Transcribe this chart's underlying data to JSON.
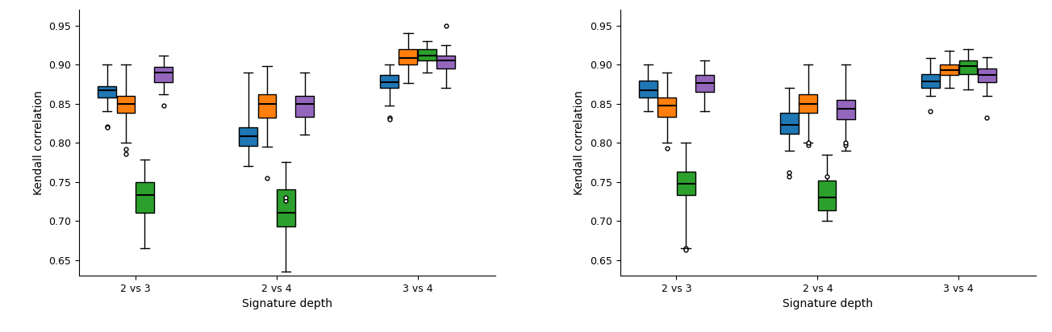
{
  "left": {
    "groups": [
      "2 vs 3",
      "2 vs 4",
      "3 vs 4"
    ],
    "series": {
      "blue": {
        "color": "#1f77b4",
        "boxes": [
          {
            "med": 0.867,
            "q1": 0.858,
            "q3": 0.872,
            "whislo": 0.84,
            "whishi": 0.9,
            "fliers": [
              0.821,
              0.82
            ]
          },
          {
            "med": 0.808,
            "q1": 0.796,
            "q3": 0.82,
            "whislo": 0.77,
            "whishi": 0.89,
            "fliers": []
          },
          {
            "med": 0.878,
            "q1": 0.87,
            "q3": 0.887,
            "whislo": 0.848,
            "whishi": 0.9,
            "fliers": [
              0.832,
              0.83
            ]
          }
        ]
      },
      "orange": {
        "color": "#ff7f0e",
        "boxes": [
          {
            "med": 0.85,
            "q1": 0.838,
            "q3": 0.86,
            "whislo": 0.8,
            "whishi": 0.9,
            "fliers": [
              0.792,
              0.786
            ]
          },
          {
            "med": 0.85,
            "q1": 0.832,
            "q3": 0.862,
            "whislo": 0.795,
            "whishi": 0.898,
            "fliers": [
              0.755
            ]
          },
          {
            "med": 0.908,
            "q1": 0.9,
            "q3": 0.92,
            "whislo": 0.876,
            "whishi": 0.94,
            "fliers": []
          }
        ]
      },
      "green": {
        "color": "#2ca02c",
        "boxes": [
          {
            "med": 0.733,
            "q1": 0.71,
            "q3": 0.75,
            "whislo": 0.665,
            "whishi": 0.778,
            "fliers": []
          },
          {
            "med": 0.71,
            "q1": 0.693,
            "q3": 0.74,
            "whislo": 0.635,
            "whishi": 0.775,
            "fliers": [
              0.726,
              0.73
            ]
          },
          {
            "med": 0.912,
            "q1": 0.905,
            "q3": 0.92,
            "whislo": 0.89,
            "whishi": 0.93,
            "fliers": []
          }
        ]
      },
      "purple": {
        "color": "#9467bd",
        "boxes": [
          {
            "med": 0.89,
            "q1": 0.878,
            "q3": 0.897,
            "whislo": 0.862,
            "whishi": 0.912,
            "fliers": [
              0.848
            ]
          },
          {
            "med": 0.85,
            "q1": 0.833,
            "q3": 0.86,
            "whislo": 0.81,
            "whishi": 0.89,
            "fliers": []
          },
          {
            "med": 0.905,
            "q1": 0.895,
            "q3": 0.912,
            "whislo": 0.87,
            "whishi": 0.925,
            "fliers": [
              0.95
            ]
          }
        ]
      }
    }
  },
  "right": {
    "groups": [
      "2 vs 3",
      "2 vs 4",
      "3 vs 4"
    ],
    "series": {
      "blue": {
        "color": "#1f77b4",
        "boxes": [
          {
            "med": 0.867,
            "q1": 0.858,
            "q3": 0.88,
            "whislo": 0.84,
            "whishi": 0.9,
            "fliers": []
          },
          {
            "med": 0.823,
            "q1": 0.812,
            "q3": 0.838,
            "whislo": 0.79,
            "whishi": 0.87,
            "fliers": [
              0.757,
              0.762
            ]
          },
          {
            "med": 0.879,
            "q1": 0.87,
            "q3": 0.888,
            "whislo": 0.86,
            "whishi": 0.908,
            "fliers": [
              0.84
            ]
          }
        ]
      },
      "orange": {
        "color": "#ff7f0e",
        "boxes": [
          {
            "med": 0.848,
            "q1": 0.833,
            "q3": 0.858,
            "whislo": 0.8,
            "whishi": 0.89,
            "fliers": [
              0.793
            ]
          },
          {
            "med": 0.85,
            "q1": 0.838,
            "q3": 0.862,
            "whislo": 0.8,
            "whishi": 0.9,
            "fliers": [
              0.797,
              0.8
            ]
          },
          {
            "med": 0.893,
            "q1": 0.887,
            "q3": 0.9,
            "whislo": 0.87,
            "whishi": 0.918,
            "fliers": []
          }
        ]
      },
      "green": {
        "color": "#2ca02c",
        "boxes": [
          {
            "med": 0.748,
            "q1": 0.733,
            "q3": 0.763,
            "whislo": 0.665,
            "whishi": 0.8,
            "fliers": [
              0.665,
              0.663
            ]
          },
          {
            "med": 0.73,
            "q1": 0.713,
            "q3": 0.752,
            "whislo": 0.7,
            "whishi": 0.785,
            "fliers": [
              0.757
            ]
          },
          {
            "med": 0.898,
            "q1": 0.888,
            "q3": 0.905,
            "whislo": 0.868,
            "whishi": 0.92,
            "fliers": []
          }
        ]
      },
      "purple": {
        "color": "#9467bd",
        "boxes": [
          {
            "med": 0.877,
            "q1": 0.865,
            "q3": 0.887,
            "whislo": 0.84,
            "whishi": 0.905,
            "fliers": []
          },
          {
            "med": 0.843,
            "q1": 0.83,
            "q3": 0.855,
            "whislo": 0.79,
            "whishi": 0.9,
            "fliers": [
              0.797,
              0.8
            ]
          },
          {
            "med": 0.887,
            "q1": 0.878,
            "q3": 0.895,
            "whislo": 0.86,
            "whishi": 0.91,
            "fliers": [
              0.832
            ]
          }
        ]
      }
    }
  },
  "ylim": [
    0.63,
    0.97
  ],
  "yticks": [
    0.65,
    0.7,
    0.75,
    0.8,
    0.85,
    0.9,
    0.95
  ],
  "ylabel": "Kendall correlation",
  "xlabel": "Signature depth",
  "box_width": 0.13,
  "group_positions": [
    1.0,
    2.0,
    3.0
  ],
  "offsets": [
    -0.2,
    -0.067,
    0.067,
    0.2
  ]
}
